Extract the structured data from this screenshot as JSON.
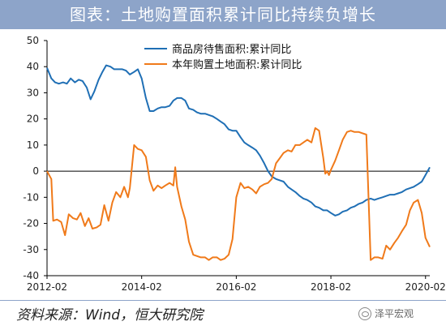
{
  "page": {
    "title": "图表：土地购置面积累计同比持续负增长",
    "source": "资料来源：Wind，恒大研究院",
    "watermark": "泽平宏观",
    "watermark_icon": "wechat-icon"
  },
  "chart_data": {
    "type": "line",
    "title": "",
    "xlabel": "",
    "ylabel": "",
    "ylim": [
      -40,
      50
    ],
    "yticks": [
      -40,
      -30,
      -20,
      -10,
      0,
      10,
      20,
      30,
      40,
      50
    ],
    "xlim": [
      2012.08,
      2020.17
    ],
    "xticks": [
      {
        "value": 2012.08,
        "label": "2012-02"
      },
      {
        "value": 2014.08,
        "label": "2014-02"
      },
      {
        "value": 2016.08,
        "label": "2016-02"
      },
      {
        "value": 2018.08,
        "label": "2018-02"
      },
      {
        "value": 2020.08,
        "label": "2020-02"
      }
    ],
    "legend_position": "top-center",
    "grid": false,
    "series": [
      {
        "name": "商品房待售面积:累计同比",
        "color": "#1f6fb5",
        "points": [
          [
            2012.08,
            39.5
          ],
          [
            2012.17,
            35.5
          ],
          [
            2012.25,
            34
          ],
          [
            2012.33,
            33.5
          ],
          [
            2012.42,
            34
          ],
          [
            2012.5,
            33.5
          ],
          [
            2012.58,
            35.5
          ],
          [
            2012.67,
            34
          ],
          [
            2012.75,
            35
          ],
          [
            2012.83,
            34.5
          ],
          [
            2012.92,
            32
          ],
          [
            2013.0,
            27.5
          ],
          [
            2013.08,
            30.5
          ],
          [
            2013.17,
            35
          ],
          [
            2013.25,
            38
          ],
          [
            2013.33,
            40.5
          ],
          [
            2013.42,
            40
          ],
          [
            2013.5,
            39
          ],
          [
            2013.58,
            39
          ],
          [
            2013.67,
            39
          ],
          [
            2013.75,
            38.5
          ],
          [
            2013.83,
            37
          ],
          [
            2013.92,
            38
          ],
          [
            2014.0,
            39
          ],
          [
            2014.08,
            35.5
          ],
          [
            2014.17,
            28
          ],
          [
            2014.25,
            23
          ],
          [
            2014.33,
            23
          ],
          [
            2014.42,
            24
          ],
          [
            2014.5,
            24.5
          ],
          [
            2014.58,
            24.5
          ],
          [
            2014.67,
            25
          ],
          [
            2014.75,
            27
          ],
          [
            2014.83,
            28
          ],
          [
            2014.92,
            28
          ],
          [
            2015.0,
            27
          ],
          [
            2015.08,
            24
          ],
          [
            2015.17,
            23.5
          ],
          [
            2015.25,
            22.5
          ],
          [
            2015.33,
            22
          ],
          [
            2015.42,
            22
          ],
          [
            2015.5,
            21.5
          ],
          [
            2015.58,
            21
          ],
          [
            2015.67,
            20
          ],
          [
            2015.75,
            19
          ],
          [
            2015.83,
            18
          ],
          [
            2015.92,
            16
          ],
          [
            2016.0,
            15.5
          ],
          [
            2016.08,
            15.5
          ],
          [
            2016.17,
            13
          ],
          [
            2016.25,
            11
          ],
          [
            2016.33,
            10
          ],
          [
            2016.42,
            9
          ],
          [
            2016.5,
            8
          ],
          [
            2016.58,
            6
          ],
          [
            2016.67,
            3
          ],
          [
            2016.75,
            0
          ],
          [
            2016.83,
            -2
          ],
          [
            2016.92,
            -3
          ],
          [
            2017.0,
            -3.5
          ],
          [
            2017.08,
            -4
          ],
          [
            2017.17,
            -6
          ],
          [
            2017.25,
            -7
          ],
          [
            2017.33,
            -8
          ],
          [
            2017.42,
            -9.5
          ],
          [
            2017.5,
            -10.5
          ],
          [
            2017.58,
            -11
          ],
          [
            2017.67,
            -12
          ],
          [
            2017.75,
            -13.5
          ],
          [
            2017.83,
            -14
          ],
          [
            2017.92,
            -15
          ],
          [
            2018.0,
            -15
          ],
          [
            2018.08,
            -16
          ],
          [
            2018.17,
            -17
          ],
          [
            2018.25,
            -16.5
          ],
          [
            2018.33,
            -15.5
          ],
          [
            2018.42,
            -15
          ],
          [
            2018.5,
            -14
          ],
          [
            2018.58,
            -13.5
          ],
          [
            2018.67,
            -12.5
          ],
          [
            2018.75,
            -12
          ],
          [
            2018.83,
            -11
          ],
          [
            2018.92,
            -10.5
          ],
          [
            2019.0,
            -11
          ],
          [
            2019.08,
            -10.5
          ],
          [
            2019.17,
            -10
          ],
          [
            2019.25,
            -9.5
          ],
          [
            2019.33,
            -9
          ],
          [
            2019.42,
            -9
          ],
          [
            2019.5,
            -8.5
          ],
          [
            2019.58,
            -8
          ],
          [
            2019.67,
            -7
          ],
          [
            2019.75,
            -6.5
          ],
          [
            2019.83,
            -6
          ],
          [
            2019.92,
            -5
          ],
          [
            2020.0,
            -4
          ],
          [
            2020.08,
            -1.5
          ],
          [
            2020.17,
            1.5
          ]
        ]
      },
      {
        "name": "本年购置土地面积:累计同比",
        "color": "#f07a1a",
        "points": [
          [
            2012.08,
            0
          ],
          [
            2012.17,
            -3
          ],
          [
            2012.21,
            -19
          ],
          [
            2012.29,
            -18.5
          ],
          [
            2012.38,
            -19.5
          ],
          [
            2012.46,
            -24.5
          ],
          [
            2012.54,
            -16.5
          ],
          [
            2012.63,
            -18
          ],
          [
            2012.71,
            -18.5
          ],
          [
            2012.79,
            -16
          ],
          [
            2012.88,
            -21
          ],
          [
            2012.96,
            -18
          ],
          [
            2013.04,
            -22
          ],
          [
            2013.13,
            -21.5
          ],
          [
            2013.21,
            -20.5
          ],
          [
            2013.29,
            -13
          ],
          [
            2013.38,
            -19
          ],
          [
            2013.46,
            -12
          ],
          [
            2013.54,
            -8
          ],
          [
            2013.63,
            -10
          ],
          [
            2013.71,
            -6
          ],
          [
            2013.79,
            -10
          ],
          [
            2013.83,
            -6.5
          ],
          [
            2013.92,
            10
          ],
          [
            2014.0,
            8.5
          ],
          [
            2014.08,
            8
          ],
          [
            2014.17,
            5.5
          ],
          [
            2014.25,
            -3.5
          ],
          [
            2014.33,
            -7.5
          ],
          [
            2014.42,
            -5.5
          ],
          [
            2014.5,
            -6.5
          ],
          [
            2014.58,
            -5.5
          ],
          [
            2014.67,
            -4.5
          ],
          [
            2014.75,
            -5.5
          ],
          [
            2014.79,
            1.5
          ],
          [
            2014.83,
            -6
          ],
          [
            2014.92,
            -13.5
          ],
          [
            2015.0,
            -18.5
          ],
          [
            2015.08,
            -27
          ],
          [
            2015.17,
            -32
          ],
          [
            2015.25,
            -32.5
          ],
          [
            2015.33,
            -33
          ],
          [
            2015.42,
            -33
          ],
          [
            2015.5,
            -34
          ],
          [
            2015.58,
            -33
          ],
          [
            2015.67,
            -33
          ],
          [
            2015.75,
            -34
          ],
          [
            2015.83,
            -33.5
          ],
          [
            2015.92,
            -32
          ],
          [
            2016.0,
            -26
          ],
          [
            2016.08,
            -10
          ],
          [
            2016.17,
            -4.5
          ],
          [
            2016.25,
            -6.5
          ],
          [
            2016.33,
            -6
          ],
          [
            2016.42,
            -7
          ],
          [
            2016.5,
            -8.5
          ],
          [
            2016.58,
            -6
          ],
          [
            2016.67,
            -5
          ],
          [
            2016.75,
            -4.5
          ],
          [
            2016.83,
            -3
          ],
          [
            2016.92,
            3
          ],
          [
            2017.0,
            5
          ],
          [
            2017.08,
            7
          ],
          [
            2017.17,
            8
          ],
          [
            2017.25,
            7.5
          ],
          [
            2017.33,
            10
          ],
          [
            2017.42,
            10
          ],
          [
            2017.5,
            11
          ],
          [
            2017.58,
            12
          ],
          [
            2017.67,
            11
          ],
          [
            2017.75,
            16.5
          ],
          [
            2017.83,
            15.5
          ],
          [
            2017.92,
            5
          ],
          [
            2017.96,
            -1
          ],
          [
            2018.0,
            0
          ],
          [
            2018.04,
            -1.5
          ],
          [
            2018.08,
            0.5
          ],
          [
            2018.17,
            4
          ],
          [
            2018.25,
            8
          ],
          [
            2018.33,
            12
          ],
          [
            2018.42,
            15
          ],
          [
            2018.5,
            15.5
          ],
          [
            2018.58,
            15
          ],
          [
            2018.67,
            15
          ],
          [
            2018.75,
            14.5
          ],
          [
            2018.83,
            14
          ],
          [
            2018.92,
            -34
          ],
          [
            2019.0,
            -33
          ],
          [
            2019.08,
            -33
          ],
          [
            2019.17,
            -33.5
          ],
          [
            2019.25,
            -28.5
          ],
          [
            2019.33,
            -30
          ],
          [
            2019.42,
            -27.5
          ],
          [
            2019.5,
            -25.5
          ],
          [
            2019.58,
            -23
          ],
          [
            2019.67,
            -20.5
          ],
          [
            2019.75,
            -15
          ],
          [
            2019.83,
            -12
          ],
          [
            2019.92,
            -11
          ],
          [
            2020.0,
            -16
          ],
          [
            2020.08,
            -25.5
          ],
          [
            2020.17,
            -29
          ]
        ]
      }
    ]
  }
}
